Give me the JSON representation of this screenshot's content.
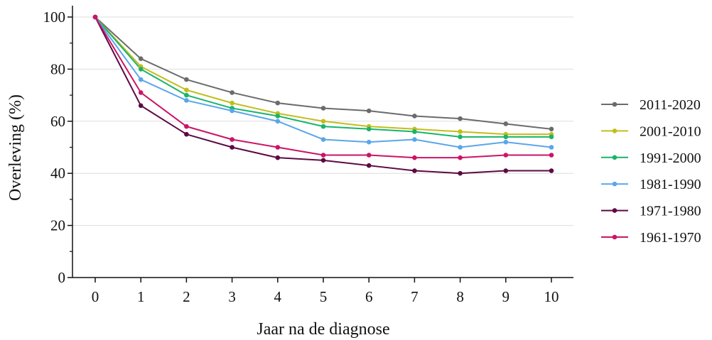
{
  "chart_data": {
    "type": "line",
    "title": "",
    "xlabel": "Jaar na de diagnose",
    "ylabel": "Overleving (%)",
    "x": [
      0,
      1,
      2,
      3,
      4,
      5,
      6,
      7,
      8,
      9,
      10
    ],
    "xlim": [
      0,
      10
    ],
    "ylim": [
      0,
      100
    ],
    "x_ticks": [
      "0",
      "1",
      "2",
      "3",
      "4",
      "5",
      "6",
      "7",
      "8",
      "9",
      "10"
    ],
    "y_ticks": [
      "0",
      "20",
      "40",
      "60",
      "80",
      "100"
    ],
    "grid": "horizontal",
    "legend_position": "right",
    "series": [
      {
        "name": "2011-2020",
        "color": "#6b6b6b",
        "values": [
          100,
          84,
          76,
          71,
          67,
          65,
          64,
          62,
          61,
          59,
          57
        ]
      },
      {
        "name": "2001-2010",
        "color": "#c3bd1c",
        "values": [
          100,
          81,
          72,
          67,
          63,
          60,
          58,
          57,
          56,
          55,
          55
        ]
      },
      {
        "name": "1991-2000",
        "color": "#19b46a",
        "values": [
          100,
          80,
          70,
          65,
          62,
          58,
          57,
          56,
          54,
          54,
          54
        ]
      },
      {
        "name": "1981-1990",
        "color": "#5aa6ea",
        "values": [
          100,
          76,
          68,
          64,
          60,
          53,
          52,
          53,
          50,
          52,
          50
        ]
      },
      {
        "name": "1971-1980",
        "color": "#5c0a45",
        "values": [
          100,
          66,
          55,
          50,
          46,
          45,
          43,
          41,
          40,
          41,
          41
        ]
      },
      {
        "name": "1961-1970",
        "color": "#cc1466",
        "values": [
          100,
          71,
          58,
          53,
          50,
          47,
          47,
          46,
          46,
          47,
          47
        ]
      }
    ]
  }
}
